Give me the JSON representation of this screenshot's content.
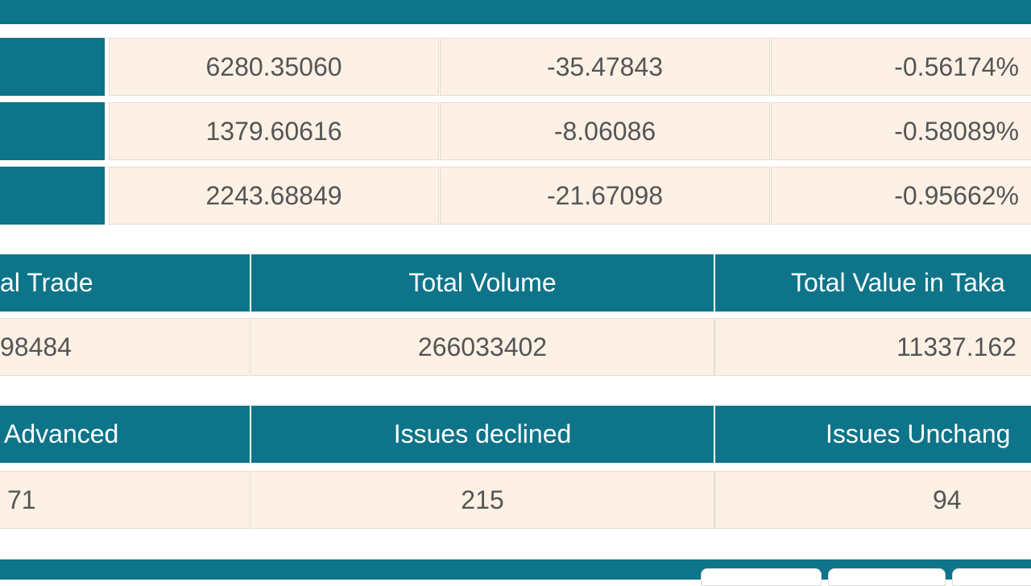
{
  "index_table": {
    "rows": [
      [
        "6280.35060",
        "-35.47843",
        "-0.56174%"
      ],
      [
        "1379.60616",
        "-8.06086",
        "-0.58089%"
      ],
      [
        "2243.68849",
        "-21.67098",
        "-0.95662%"
      ]
    ]
  },
  "trade_table": {
    "headers": [
      "al Trade",
      "Total Volume",
      "Total Value in Taka"
    ],
    "values": [
      "98484",
      "266033402",
      "11337.162"
    ]
  },
  "issues_table": {
    "headers": [
      "Advanced",
      "Issues declined",
      "Issues Unchang"
    ],
    "values": [
      "71",
      "215",
      "94"
    ]
  }
}
